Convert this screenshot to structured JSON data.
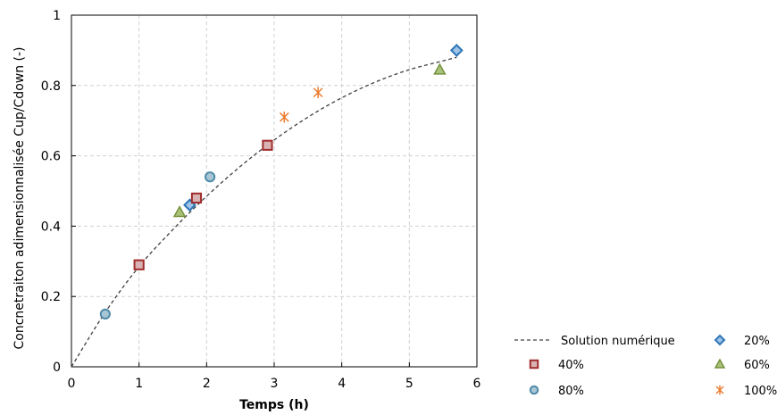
{
  "chart_data": {
    "type": "scatter",
    "xlabel": "Temps (h)",
    "ylabel": "Concnetraiton adimensionnalisée Cup/Cdown (-)",
    "xlim": [
      0,
      6
    ],
    "ylim": [
      0,
      1
    ],
    "x_ticks": [
      "0",
      "1",
      "2",
      "3",
      "4",
      "5",
      "6"
    ],
    "y_ticks": [
      "0",
      "0.2",
      "0.4",
      "0.6",
      "0.8",
      "1"
    ],
    "grid": true,
    "legend_position": "bottom-right",
    "colors": {
      "curve": "#404040",
      "s20_fill": "#9dc3e6",
      "s20_stroke": "#2e75b6",
      "s40_fill": "#d9b3b3",
      "s40_stroke": "#a02b2b",
      "s60_fill": "#a9c27a",
      "s60_stroke": "#76923c",
      "s80_fill": "#a9c6d6",
      "s80_stroke": "#4f8ba8",
      "s100": "#ed7d31"
    },
    "curve": {
      "name": "Solution numérique",
      "style": "dashed",
      "x": [
        0,
        0.5,
        1,
        1.5,
        2,
        2.5,
        3,
        3.5,
        4,
        4.5,
        5,
        5.5,
        5.7
      ],
      "y": [
        0,
        0.155,
        0.285,
        0.39,
        0.485,
        0.57,
        0.645,
        0.71,
        0.765,
        0.81,
        0.845,
        0.87,
        0.88
      ]
    },
    "series": [
      {
        "name": "20%",
        "marker": "diamond",
        "x": [
          1.75,
          5.7
        ],
        "y": [
          0.46,
          0.9
        ]
      },
      {
        "name": "40%",
        "marker": "square",
        "x": [
          1.0,
          1.85,
          2.9
        ],
        "y": [
          0.29,
          0.48,
          0.63
        ]
      },
      {
        "name": "60%",
        "marker": "triangle",
        "x": [
          1.6,
          5.45
        ],
        "y": [
          0.44,
          0.845
        ]
      },
      {
        "name": "80%",
        "marker": "circle",
        "x": [
          0.5,
          2.05
        ],
        "y": [
          0.15,
          0.54
        ]
      },
      {
        "name": "100%",
        "marker": "star",
        "x": [
          3.15,
          3.65
        ],
        "y": [
          0.71,
          0.78
        ]
      }
    ],
    "legend": [
      {
        "label": "Solution numérique",
        "key": "curve"
      },
      {
        "label": "20%",
        "key": "20%"
      },
      {
        "label": "40%",
        "key": "40%"
      },
      {
        "label": "60%",
        "key": "60%"
      },
      {
        "label": "80%",
        "key": "80%"
      },
      {
        "label": "100%",
        "key": "100%"
      }
    ]
  }
}
